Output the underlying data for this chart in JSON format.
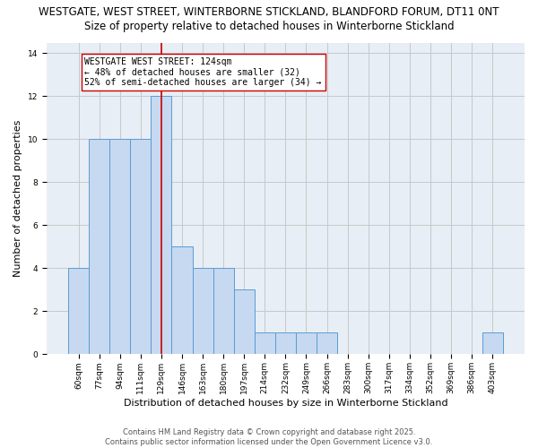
{
  "title_line1": "WESTGATE, WEST STREET, WINTERBORNE STICKLAND, BLANDFORD FORUM, DT11 0NT",
  "title_line2": "Size of property relative to detached houses in Winterborne Stickland",
  "xlabel": "Distribution of detached houses by size in Winterborne Stickland",
  "ylabel": "Number of detached properties",
  "categories": [
    "60sqm",
    "77sqm",
    "94sqm",
    "111sqm",
    "129sqm",
    "146sqm",
    "163sqm",
    "180sqm",
    "197sqm",
    "214sqm",
    "232sqm",
    "249sqm",
    "266sqm",
    "283sqm",
    "300sqm",
    "317sqm",
    "334sqm",
    "352sqm",
    "369sqm",
    "386sqm",
    "403sqm"
  ],
  "values": [
    4,
    10,
    10,
    10,
    12,
    5,
    4,
    4,
    3,
    1,
    1,
    1,
    1,
    0,
    0,
    0,
    0,
    0,
    0,
    0,
    1
  ],
  "bar_color": "#c6d9f0",
  "bar_edgecolor": "#5b9bd5",
  "bar_linewidth": 0.7,
  "vline_x_idx": 4,
  "vline_color": "#cc0000",
  "vline_linewidth": 1.2,
  "annotation_line1": "WESTGATE WEST STREET: 124sqm",
  "annotation_line2": "← 48% of detached houses are smaller (32)",
  "annotation_line3": "52% of semi-detached houses are larger (34) →",
  "ylim_max": 14.5,
  "yticks": [
    0,
    2,
    4,
    6,
    8,
    10,
    12,
    14
  ],
  "grid_color": "#c8c8c8",
  "background_color": "#e8eef5",
  "footnote": "Contains HM Land Registry data © Crown copyright and database right 2025.\nContains public sector information licensed under the Open Government Licence v3.0.",
  "title_fontsize": 8.5,
  "subtitle_fontsize": 8.5,
  "axis_label_fontsize": 8.0,
  "tick_fontsize": 6.5,
  "annotation_fontsize": 7.0,
  "footnote_fontsize": 6.0,
  "ylabel_fontsize": 8.0
}
